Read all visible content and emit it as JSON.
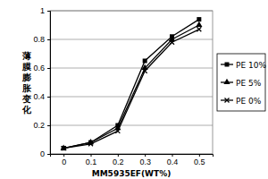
{
  "chart_data": {
    "type": "line",
    "x_label": "MM5935EF(WT%)",
    "y_label": "薄膜膨胀变化",
    "categories": [
      "0",
      "0.1",
      "0.2",
      "0.3",
      "0.4",
      "0.5"
    ],
    "series": [
      {
        "name": "PE 10%",
        "color": "#000000",
        "marker": "square",
        "values": [
          0.04,
          0.08,
          0.2,
          0.65,
          0.82,
          0.94
        ]
      },
      {
        "name": "PE 5%",
        "color": "#000000",
        "marker": "triangle",
        "values": [
          0.04,
          0.08,
          0.18,
          0.6,
          0.8,
          0.9
        ]
      },
      {
        "name": "PE 0%",
        "color": "#000000",
        "marker": "x",
        "values": [
          0.04,
          0.07,
          0.16,
          0.58,
          0.78,
          0.87
        ]
      }
    ],
    "ylim": [
      0,
      1
    ],
    "yticks": [
      0,
      0.2,
      0.4,
      0.6,
      0.8,
      1
    ],
    "grid": true,
    "legend": "right"
  }
}
